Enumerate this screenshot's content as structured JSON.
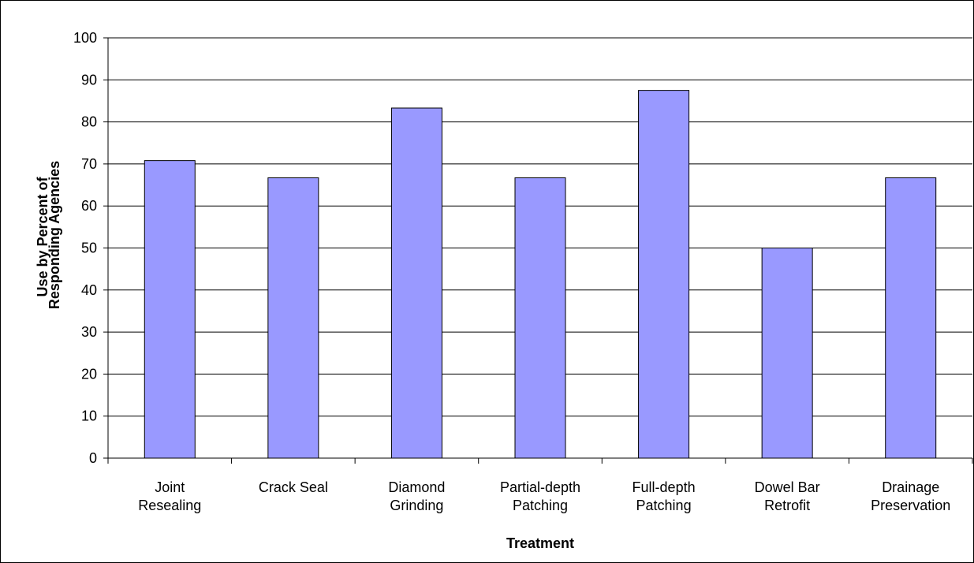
{
  "chart_data": {
    "type": "bar",
    "title": "",
    "xlabel": "Treatment",
    "ylabel": [
      "Use by Percent of",
      "Responding Agencies"
    ],
    "ylim": [
      0,
      100
    ],
    "yticks": [
      0,
      10,
      20,
      30,
      40,
      50,
      60,
      70,
      80,
      90,
      100
    ],
    "grid": true,
    "legend": "none",
    "bar_color": "#9999FF",
    "categories": [
      [
        "Joint",
        "Resealing"
      ],
      [
        "Crack Seal"
      ],
      [
        "Diamond",
        "Grinding"
      ],
      [
        "Partial-depth",
        "Patching"
      ],
      [
        "Full-depth",
        "Patching"
      ],
      [
        "Dowel Bar",
        "Retrofit"
      ],
      [
        "Drainage",
        "Preservation"
      ]
    ],
    "values": [
      70.8,
      66.7,
      83.3,
      66.7,
      87.5,
      50.0,
      66.7
    ]
  }
}
